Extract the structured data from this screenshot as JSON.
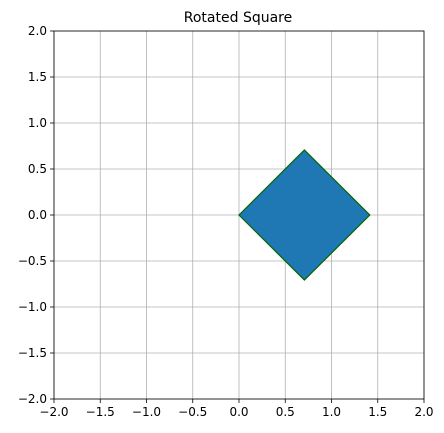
{
  "chart_data": {
    "type": "polygon",
    "title": "Rotated Square",
    "xlabel": "",
    "ylabel": "",
    "xlim": [
      -2.0,
      2.0
    ],
    "ylim": [
      -2.0,
      2.0
    ],
    "grid": true,
    "x_ticks": [
      -2.0,
      -1.5,
      -1.0,
      -0.5,
      0.0,
      0.5,
      1.0,
      1.5,
      2.0
    ],
    "x_tick_labels": [
      "−2.0",
      "−1.5",
      "−1.0",
      "−0.5",
      "0.0",
      "0.5",
      "1.0",
      "1.5",
      "2.0"
    ],
    "y_ticks": [
      -2.0,
      -1.5,
      -1.0,
      -0.5,
      0.0,
      0.5,
      1.0,
      1.5,
      2.0
    ],
    "y_tick_labels": [
      "−2.0",
      "−1.5",
      "−1.0",
      "−0.5",
      "0.0",
      "0.5",
      "1.0",
      "1.5",
      "2.0"
    ],
    "polygon": {
      "vertices": [
        [
          0.0,
          0.0
        ],
        [
          0.707,
          0.707
        ],
        [
          1.414,
          0.0
        ],
        [
          0.707,
          -0.707
        ]
      ],
      "fill_color": "#1f77b4",
      "edge_color": "#006400"
    }
  }
}
